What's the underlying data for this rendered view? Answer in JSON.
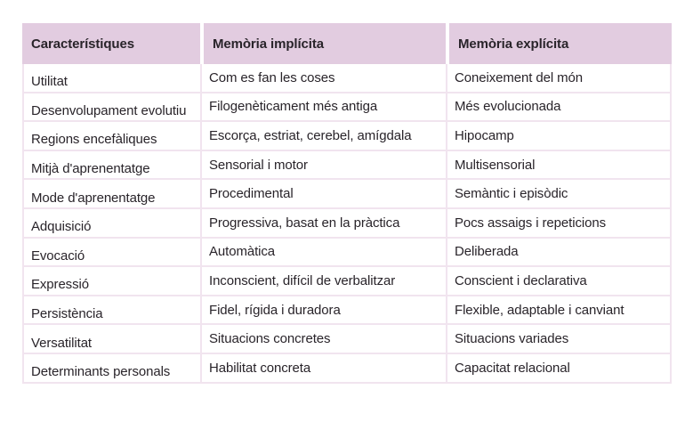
{
  "chart_data": {
    "type": "table",
    "columns": [
      "Característiques",
      "Memòria implícita",
      "Memòria explícita"
    ],
    "rows": [
      [
        "Utilitat",
        "Com es fan les coses",
        "Coneixement del món"
      ],
      [
        "Desenvolupament evolutiu",
        "Filogenèticament més antiga",
        "Més evolucionada"
      ],
      [
        "Regions encefàliques",
        "Escorça, estriat, cerebel, amígdala",
        "Hipocamp"
      ],
      [
        "Mitjà d'aprenentatge",
        "Sensorial i motor",
        "Multisensorial"
      ],
      [
        "Mode d'aprenentatge",
        "Procedimental",
        "Semàntic i episòdic"
      ],
      [
        "Adquisició",
        "Progressiva, basat en la pràctica",
        "Pocs assaigs i repeticions"
      ],
      [
        "Evocació",
        "Automàtica",
        "Deliberada"
      ],
      [
        "Expressió",
        "Inconscient, difícil de verbalitzar",
        "Conscient i declarativa"
      ],
      [
        "Persistència",
        "Fidel, rígida i duradora",
        "Flexible, adaptable i canviant"
      ],
      [
        "Versatilitat",
        "Situacions concretes",
        "Situacions variades"
      ],
      [
        "Determinants personals",
        "Habilitat concreta",
        "Capacitat relacional"
      ]
    ]
  },
  "colors": {
    "header_background": "#e2cce0",
    "grid_border": "#f1e4ef",
    "text": "#29242a",
    "page_background": "#ffffff"
  }
}
